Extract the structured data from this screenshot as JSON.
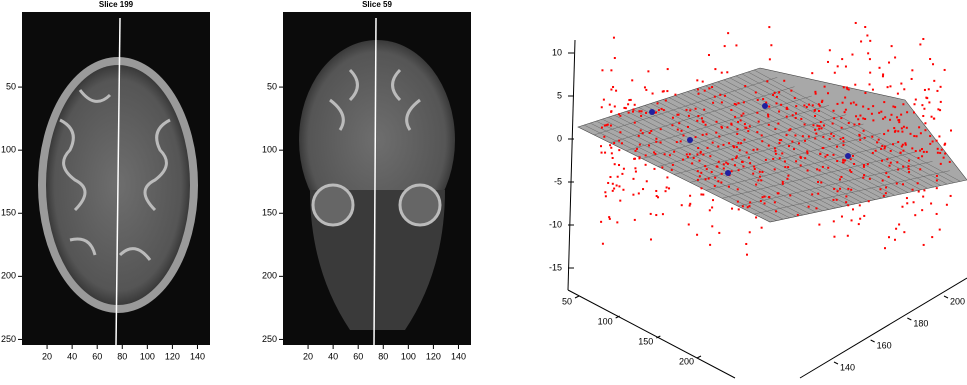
{
  "panels": [
    {
      "title": "Slice 199",
      "xlim": [
        0,
        150
      ],
      "ylim": [
        0,
        256
      ],
      "xticks": [
        20,
        40,
        60,
        80,
        100,
        120,
        140
      ],
      "yticks": [
        50,
        100,
        150,
        200,
        250
      ]
    },
    {
      "title": "Slice 59",
      "xlim": [
        0,
        150
      ],
      "ylim": [
        0,
        256
      ],
      "xticks": [
        20,
        40,
        60,
        80,
        100,
        120,
        140
      ],
      "yticks": [
        50,
        100,
        150,
        200,
        250
      ]
    }
  ],
  "plot3d": {
    "xlim": [
      50,
      200
    ],
    "ylim": [
      140,
      200
    ],
    "zlim": [
      -15,
      10
    ],
    "xticks": [
      50,
      100,
      150,
      200
    ],
    "yticks": [
      140,
      160,
      180,
      200
    ],
    "zticks": [
      10,
      5,
      0,
      -5,
      -10,
      -15
    ]
  }
}
